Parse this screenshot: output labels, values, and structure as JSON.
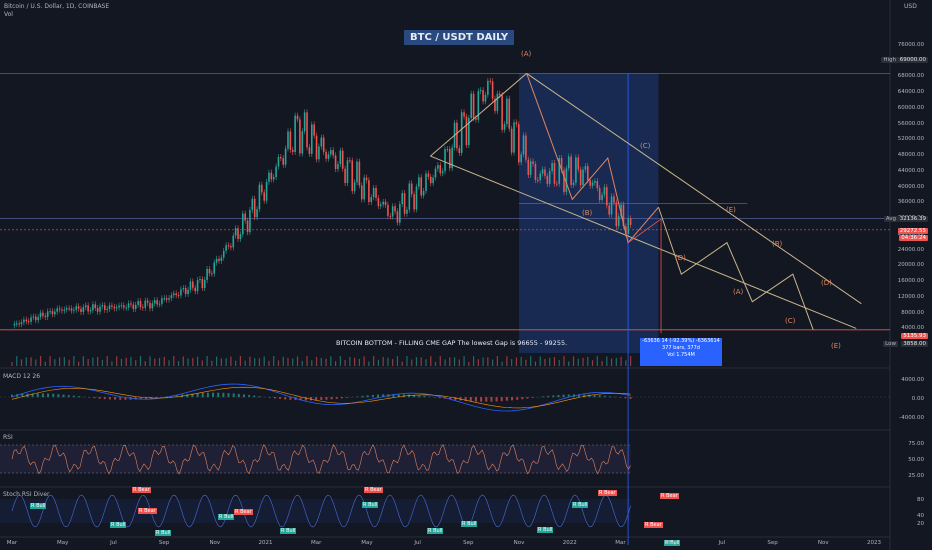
{
  "header": {
    "symbol_line": "Bitcoin / U.S. Dollar, 1D, COINBASE",
    "vol_label": "Vol",
    "currency": "USD"
  },
  "title": "BTC / USDT DAILY",
  "note": "BITCOIN BOTTOM - FILLING CME GAP  The lowest Gap is 96655 - 99255.",
  "measure_box": {
    "line1": "-63636 14 (-92.39%) -6363614",
    "line2": "377 bars, 377d",
    "line3": "Vol 1.754M"
  },
  "price_axis": {
    "ticks": [
      "76000.00",
      "72000.00",
      "68000.00",
      "64000.00",
      "60000.00",
      "56000.00",
      "52000.00",
      "48000.00",
      "44000.00",
      "40000.00",
      "36000.00",
      "32000.00",
      "28000.00",
      "24000.00",
      "20000.00",
      "16000.00",
      "12000.00",
      "8000.00",
      "4000.00"
    ],
    "high_label": "High",
    "high_value": "69000.00",
    "avg_label": "Avg",
    "avg_value": "32136.39",
    "current_value": "29272.55",
    "countdown": "04:36:24",
    "low_label": "Low",
    "low_value": "3858.00",
    "low_line_value": "5135.93"
  },
  "x_axis": {
    "ticks": [
      "Mar",
      "May",
      "Jul",
      "Sep",
      "Nov",
      "2021",
      "Mar",
      "May",
      "Jul",
      "Sep",
      "Nov",
      "2022",
      "Mar",
      "May",
      "Jul",
      "Sep",
      "Nov",
      "2023"
    ]
  },
  "wave_labels": [
    "(A)",
    "(B)",
    "(C)",
    "(D)",
    "(E)",
    "(B)",
    "(A)",
    "(C)",
    "(D)",
    "(E)"
  ],
  "macd": {
    "label": "MACD 12 26",
    "ticks": [
      "4000.00",
      "0.00",
      "-4000.00"
    ]
  },
  "rsi": {
    "label": "RSI",
    "ticks": [
      "75.00",
      "50.00",
      "25.00"
    ]
  },
  "stoch": {
    "label": "Stoch RSI Diver",
    "ticks": [
      "80",
      "40",
      "20"
    ],
    "bear_tag": "R Bear",
    "bull_tag": "R Bull"
  },
  "colors": {
    "bg": "#131722",
    "up": "#26a69a",
    "down": "#ef5350",
    "wave": "#e0855e",
    "channel": "#c9b48a",
    "box": "#1e3a78",
    "accent": "#2962ff"
  },
  "chart_data": {
    "type": "line",
    "title": "BTC / USDT DAILY",
    "xlabel": "",
    "ylabel": "USD",
    "x": [
      "2020-03",
      "2020-05",
      "2020-07",
      "2020-09",
      "2020-11",
      "2021-01",
      "2021-03",
      "2021-05",
      "2021-07",
      "2021-09",
      "2021-11",
      "2022-01",
      "2022-03",
      "2022-05"
    ],
    "series": [
      {
        "values": [
          5000,
          9000,
          9500,
          10500,
          16000,
          33000,
          55000,
          45000,
          33000,
          45000,
          66000,
          43000,
          44000,
          29272
        ]
      }
    ],
    "ylim": [
      0,
      78000
    ],
    "grid": false,
    "legend": "none"
  }
}
